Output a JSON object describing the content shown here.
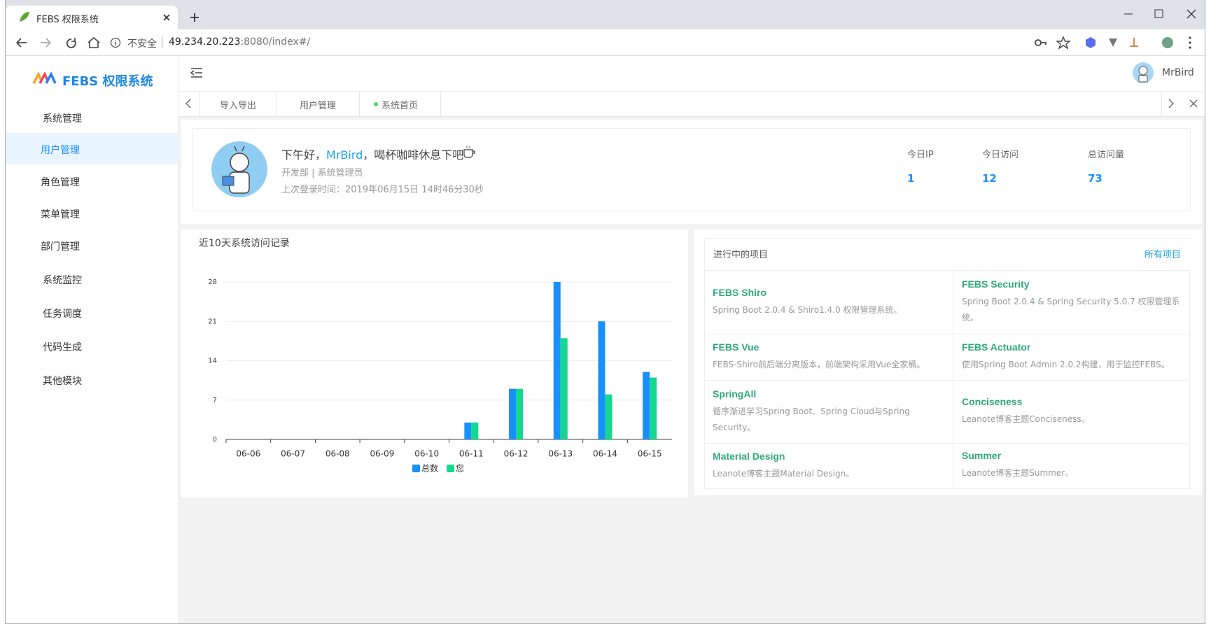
{
  "browser": {
    "tab_title": "FEBS 权限系统",
    "security": "不安全",
    "url_host": "49.234.20.223",
    "url_path": ":8080/index#/"
  },
  "sidebar": {
    "logo": "FEBS 权限系统",
    "menu": [
      {
        "label": "系统管理",
        "children": [
          "用户管理",
          "角色管理",
          "菜单管理",
          "部门管理"
        ]
      },
      {
        "label": "系统监控"
      },
      {
        "label": "任务调度"
      },
      {
        "label": "代码生成"
      },
      {
        "label": "其他模块"
      }
    ]
  },
  "header": {
    "user": "MrBird"
  },
  "tabs": [
    "导入导出",
    "用户管理",
    "系统首页"
  ],
  "welcome": {
    "greeting_start": "下午好，",
    "user": "MrBird",
    "greeting_end": "，喝杯咖啡休息下吧",
    "dept": "开发部 | 系统管理员",
    "last_login": "上次登录时间：2019年06月15日 14时46分30秒"
  },
  "stats": [
    {
      "label": "今日IP",
      "value": 1
    },
    {
      "label": "今日访问",
      "value": 12
    },
    {
      "label": "总访问量",
      "value": 73
    }
  ],
  "projects": {
    "title": "进行中的项目",
    "all_link": "所有项目",
    "items": [
      {
        "name": "FEBS Shiro",
        "desc": "Spring Boot 2.0.4 & Shiro1.4.0 权限管理系统。"
      },
      {
        "name": "FEBS Security",
        "desc": "Spring Boot 2.0.4 & Spring Security 5.0.7 权限管理系统。"
      },
      {
        "name": "FEBS Vue",
        "desc": "FEBS-Shiro前后端分离版本，前端架构采用Vue全家桶。"
      },
      {
        "name": "FEBS Actuator",
        "desc": "使用Spring Boot Admin 2.0.2构建，用于监控FEBS。"
      },
      {
        "name": "SpringAll",
        "desc": "循序渐进学习Spring Boot、Spring Cloud与Spring Security。"
      },
      {
        "name": "Conciseness",
        "desc": "Leanote博客主题Conciseness。"
      },
      {
        "name": "Material Design",
        "desc": "Leanote博客主题Material Design。"
      },
      {
        "name": "Summer",
        "desc": [
          "Leanote博客主题",
          "Summer。"
        ]
      }
    ]
  },
  "chart_data": {
    "type": "bar",
    "title": "近10天系统访问记录",
    "categories": [
      "06-06",
      "06-07",
      "06-08",
      "06-09",
      "06-10",
      "06-11",
      "06-12",
      "06-13",
      "06-14",
      "06-15"
    ],
    "series": [
      {
        "name": "总数",
        "color": "#1890ff",
        "values": [
          0,
          0,
          0,
          0,
          0,
          3,
          9,
          28,
          21,
          12
        ]
      },
      {
        "name": "您",
        "color": "#13d990",
        "values": [
          0,
          0,
          0,
          0,
          0,
          3,
          9,
          18,
          8,
          11
        ]
      }
    ],
    "ylim": [
      0,
      28
    ],
    "yticks": [
      0,
      7,
      14,
      21,
      28
    ],
    "grid": true
  }
}
